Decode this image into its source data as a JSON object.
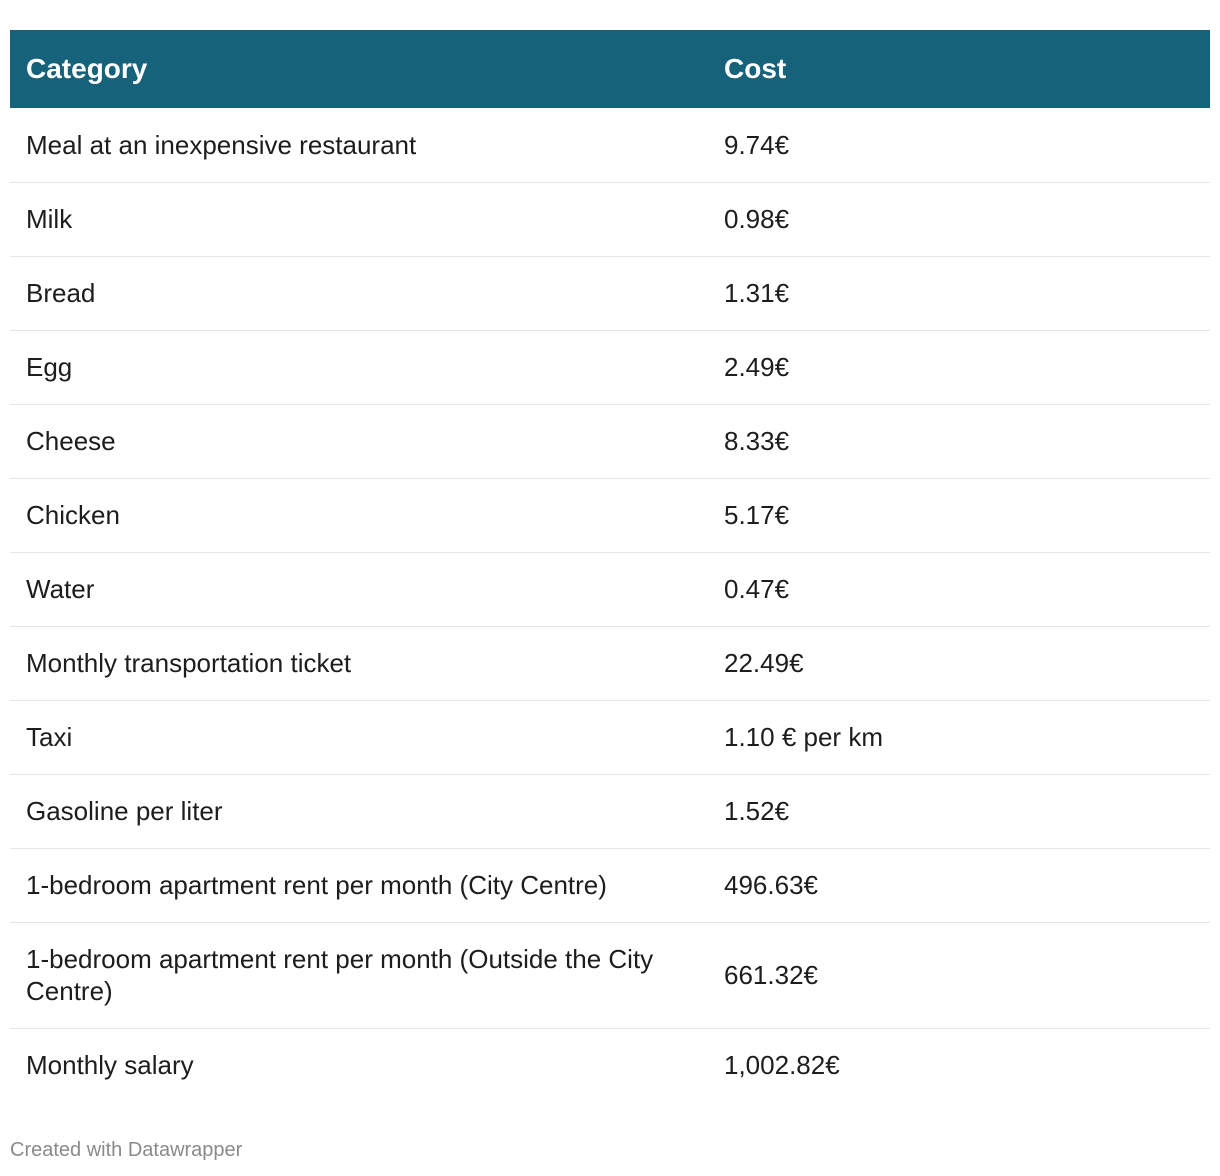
{
  "chart_data": {
    "type": "table",
    "columns": [
      "Category",
      "Cost"
    ],
    "header_color": "#16627b",
    "rows": [
      {
        "category": "Meal at an inexpensive restaurant",
        "cost": "9.74€"
      },
      {
        "category": "Milk",
        "cost": "0.98€"
      },
      {
        "category": "Bread",
        "cost": "1.31€"
      },
      {
        "category": "Egg",
        "cost": "2.49€"
      },
      {
        "category": "Cheese",
        "cost": "8.33€"
      },
      {
        "category": "Chicken",
        "cost": "5.17€"
      },
      {
        "category": "Water",
        "cost": "0.47€"
      },
      {
        "category": "Monthly transportation ticket",
        "cost": "22.49€"
      },
      {
        "category": "Taxi",
        "cost": "1.10 € per km"
      },
      {
        "category": "Gasoline per liter",
        "cost": "1.52€"
      },
      {
        "category": "1-bedroom apartment rent per month (City Centre)",
        "cost": "496.63€"
      },
      {
        "category": "1-bedroom apartment rent per month (Outside the City Centre)",
        "cost": "661.32€"
      },
      {
        "category": "Monthly salary",
        "cost": "1,002.82€"
      }
    ]
  },
  "footer": {
    "credit": "Created with Datawrapper"
  }
}
